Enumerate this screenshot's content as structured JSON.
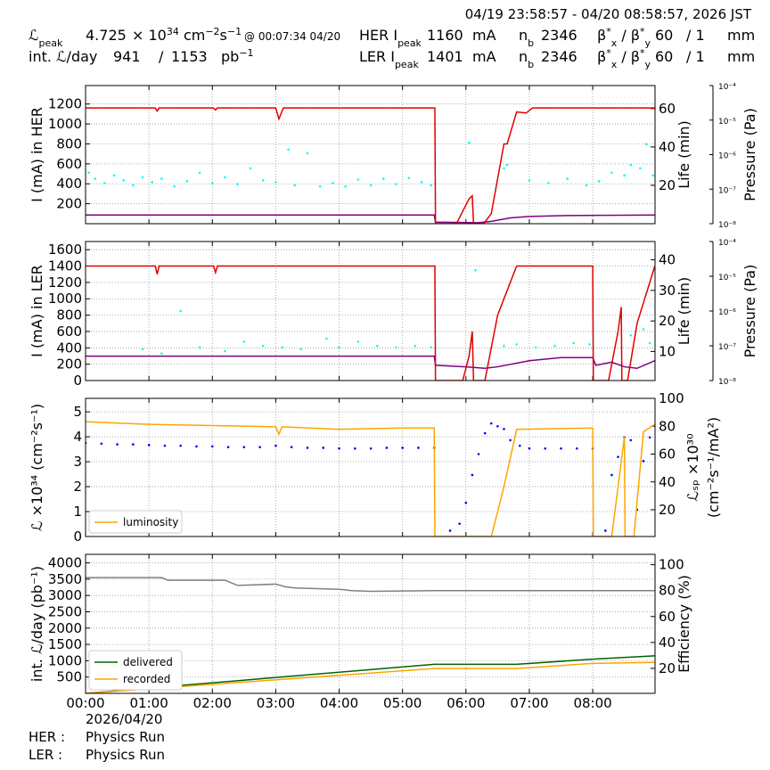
{
  "header": {
    "range": "04/19 23:58:57 - 04/20 08:58:57, 2026 JST",
    "rows": [
      [
        [
          {
            "text": "ℒ"
          },
          {
            "text": "peak",
            "pos": "sub"
          }
        ],
        [
          {
            "text": 4.725
          }
        ],
        [
          {
            "text": "× 10"
          },
          {
            "text": "34",
            "pos": "sup"
          },
          {
            "text": " cm"
          },
          {
            "text": "−2",
            "pos": "sup"
          },
          {
            "text": "s"
          },
          {
            "text": "−1",
            "pos": "sup"
          }
        ],
        [
          {
            "text": "@ 00:07:34 04/20"
          }
        ],
        [
          {
            "text": "HER I"
          },
          {
            "text": "peak",
            "pos": "sub"
          }
        ],
        [
          {
            "text": 1160
          }
        ],
        [
          {
            "text": "mA"
          }
        ],
        [
          {
            "text": "n"
          },
          {
            "text": "b",
            "pos": "sub"
          }
        ],
        [
          {
            "text": 2346
          }
        ],
        [
          {
            "text": "β"
          },
          {
            "text": "*",
            "pos": "sup"
          },
          {
            "text": "x",
            "pos": "sub"
          },
          {
            "text": " / β"
          },
          {
            "text": "*",
            "pos": "sup"
          },
          {
            "text": "y",
            "pos": "sub"
          }
        ],
        [
          {
            "text": 60
          }
        ],
        [
          {
            "text": "/ 1"
          }
        ],
        [
          {
            "text": "mm"
          }
        ]
      ],
      [
        [
          {
            "text": "int. ℒ/day"
          }
        ],
        [
          {
            "text": 941
          }
        ],
        [
          {
            "text": "/"
          }
        ],
        [
          {
            "text": 1153
          }
        ],
        [
          {
            "text": "pb"
          },
          {
            "text": "−1",
            "pos": "sup"
          }
        ],
        [
          {
            "text": "LER I"
          },
          {
            "text": "peak",
            "pos": "sub"
          }
        ],
        [
          {
            "text": 1401
          }
        ],
        [
          {
            "text": "mA"
          }
        ],
        [
          {
            "text": "n"
          },
          {
            "text": "b",
            "pos": "sub"
          }
        ],
        [
          {
            "text": 2346
          }
        ],
        [
          {
            "text": "β"
          },
          {
            "text": "*",
            "pos": "sup"
          },
          {
            "text": "x",
            "pos": "sub"
          },
          {
            "text": " / β"
          },
          {
            "text": "*",
            "pos": "sup"
          },
          {
            "text": "y",
            "pos": "sub"
          }
        ],
        [
          {
            "text": 60
          }
        ],
        [
          {
            "text": "/ 1"
          }
        ],
        [
          {
            "text": "mm"
          }
        ]
      ]
    ]
  },
  "footer": {
    "date": "2026/04/20",
    "rows": [
      {
        "label": "HER :",
        "mode": "Physics Run"
      },
      {
        "label": "LER :",
        "mode": "Physics Run"
      }
    ]
  },
  "chart_data": [
    {
      "type": "line",
      "ylabel": "I (mA) in HER",
      "y2label": "Life (min)",
      "y3label": "Pressure (Pa)",
      "grid": true,
      "xlim": [
        0,
        8.983
      ],
      "xticks": [
        0,
        1,
        2,
        3,
        4,
        5,
        6,
        7,
        8
      ],
      "ylim": [
        0,
        1385
      ],
      "yticks": [
        200,
        400,
        600,
        800,
        1000,
        1200
      ],
      "y2lim": [
        0,
        72
      ],
      "y2ticks": [
        20,
        40,
        60
      ],
      "y3lim": [
        1e-08,
        0.0001
      ],
      "y3log": true,
      "y3ticks": [
        {
          "value": 1e-08,
          "label": "10⁻⁸"
        },
        {
          "value": 1e-07,
          "label": "10⁻⁷"
        },
        {
          "value": 1e-06,
          "label": "10⁻⁶"
        },
        {
          "value": 1e-05,
          "label": "10⁻⁵"
        },
        {
          "value": 0.0001,
          "label": "10⁻⁴"
        }
      ],
      "series": [
        {
          "color": "#00ffff",
          "style": "dots",
          "axis": "y3",
          "x": [
            0.05,
            0.15,
            0.3,
            0.45,
            0.6,
            0.75,
            0.9,
            1.05,
            1.2,
            1.4,
            1.6,
            1.8,
            2.0,
            2.2,
            2.4,
            2.6,
            2.8,
            3.0,
            3.2,
            3.3,
            3.5,
            3.7,
            3.9,
            4.1,
            4.3,
            4.5,
            4.7,
            4.9,
            5.1,
            5.3,
            5.45,
            6.05,
            6.6,
            6.65,
            7.0,
            7.3,
            7.6,
            7.9,
            8.1,
            8.3,
            8.5,
            8.6,
            8.75,
            8.85,
            8.95
          ],
          "values": [
            3e-07,
            2e-07,
            1.5e-07,
            2.5e-07,
            1.8e-07,
            1.3e-07,
            2.2e-07,
            1.6e-07,
            2e-07,
            1.2e-07,
            1.7e-07,
            3e-07,
            1.5e-07,
            2.2e-07,
            1.4e-07,
            4e-07,
            1.8e-07,
            1.6e-07,
            1.4e-06,
            1.3e-07,
            1.1e-06,
            1.2e-07,
            1.5e-07,
            1.2e-07,
            1.9e-07,
            1.3e-07,
            2e-07,
            1.4e-07,
            2.1e-07,
            1.6e-07,
            1.3e-07,
            2.2e-06,
            4e-07,
            5e-07,
            1.8e-07,
            1.5e-07,
            2e-07,
            1.3e-07,
            1.7e-07,
            3e-07,
            2.5e-07,
            5e-07,
            4e-07,
            2e-06,
            2.5e-07
          ]
        },
        {
          "color": "#800080",
          "axis": "y2",
          "x": [
            0,
            5.5,
            5.52,
            6.2,
            6.4,
            6.7,
            7.0,
            7.5,
            8.98
          ],
          "values": [
            4.5,
            4.5,
            0.8,
            0.5,
            1.2,
            3,
            3.8,
            4.2,
            4.5
          ]
        },
        {
          "color": "#e00000",
          "x": [
            0,
            1.1,
            1.13,
            1.16,
            2.02,
            2.05,
            2.08,
            3.0,
            3.05,
            3.12,
            5.51,
            5.52,
            5.85,
            6.05,
            6.1,
            6.12,
            6.28,
            6.4,
            6.5,
            6.6,
            6.65,
            6.8,
            6.95,
            7.05,
            8.98
          ],
          "values": [
            1160,
            1160,
            1130,
            1160,
            1160,
            1140,
            1160,
            1160,
            1050,
            1160,
            1160,
            0,
            0,
            250,
            280,
            0,
            0,
            100,
            450,
            800,
            800,
            1120,
            1110,
            1160,
            1160
          ]
        }
      ]
    },
    {
      "type": "line",
      "ylabel": "I (mA) in LER",
      "y2label": "Life (min)",
      "y3label": "Pressure (Pa)",
      "grid": true,
      "xlim": [
        0,
        8.983
      ],
      "xticks": [
        0,
        1,
        2,
        3,
        4,
        5,
        6,
        7,
        8
      ],
      "ylim": [
        0,
        1700
      ],
      "yticks": [
        0,
        200,
        400,
        600,
        800,
        1000,
        1200,
        1400,
        1600
      ],
      "y2lim": [
        0.5,
        46
      ],
      "y2ticks": [
        10,
        20,
        30,
        40
      ],
      "y3lim": [
        1e-08,
        0.0001
      ],
      "y3log": true,
      "y3ticks": [
        {
          "value": 1e-08,
          "label": "10⁻⁸"
        },
        {
          "value": 1e-07,
          "label": "10⁻⁷"
        },
        {
          "value": 1e-06,
          "label": "10⁻⁶"
        },
        {
          "value": 1e-05,
          "label": "10⁻⁵"
        },
        {
          "value": 0.0001,
          "label": "10⁻⁴"
        }
      ],
      "series": [
        {
          "color": "#00ffff",
          "style": "dots",
          "axis": "y3",
          "x": [
            0.9,
            1.2,
            1.5,
            1.8,
            2.2,
            2.5,
            2.8,
            3.1,
            3.4,
            3.8,
            4.0,
            4.3,
            4.6,
            4.9,
            5.2,
            5.45,
            6.15,
            6.6,
            6.8,
            7.1,
            7.4,
            7.7,
            7.95,
            8.6,
            8.8,
            8.9
          ],
          "values": [
            8e-08,
            6e-08,
            1e-06,
            9e-08,
            7e-08,
            1.3e-07,
            1e-07,
            9e-08,
            8e-08,
            1.6e-07,
            9e-08,
            1.3e-07,
            1e-07,
            9e-08,
            1e-07,
            9e-08,
            1.5e-05,
            1e-07,
            1.1e-07,
            9e-08,
            1e-07,
            1.2e-07,
            1.1e-07,
            2e-07,
            3e-07,
            1.2e-07
          ]
        },
        {
          "color": "#800080",
          "axis": "y2",
          "x": [
            0,
            5.5,
            5.52,
            6.0,
            6.3,
            6.5,
            7.0,
            7.5,
            8.0,
            8.05,
            8.3,
            8.5,
            8.7,
            8.98
          ],
          "values": [
            8.5,
            8.5,
            5.5,
            5,
            4.5,
            5,
            7,
            8,
            8,
            5.5,
            6.5,
            5,
            4.5,
            7
          ]
        },
        {
          "color": "#e00000",
          "x": [
            0,
            1.1,
            1.13,
            1.16,
            2.02,
            2.05,
            2.08,
            5.51,
            5.52,
            5.95,
            6.05,
            6.1,
            6.12,
            6.3,
            6.4,
            6.5,
            6.6,
            6.7,
            6.8,
            8.0,
            8.01,
            8.25,
            8.4,
            8.45,
            8.46,
            8.55,
            8.7,
            8.98
          ],
          "values": [
            1400,
            1400,
            1300,
            1400,
            1400,
            1320,
            1400,
            1400,
            0,
            0,
            300,
            600,
            0,
            0,
            400,
            800,
            1000,
            1200,
            1400,
            1400,
            0,
            0,
            600,
            900,
            0,
            0,
            700,
            1400
          ]
        }
      ]
    },
    {
      "type": "line",
      "ylabel": "ℒ ×10³⁴ (cm⁻²s⁻¹)",
      "y2label": [
        "ℒₛₚ ×10³⁰",
        "(cm⁻²s⁻¹/mA²)"
      ],
      "grid": true,
      "legend": "lower left",
      "xlim": [
        0,
        8.983
      ],
      "xticks": [
        0,
        1,
        2,
        3,
        4,
        5,
        6,
        7,
        8
      ],
      "ylim": [
        0,
        5.54
      ],
      "yticks": [
        0,
        1,
        2,
        3,
        4,
        5
      ],
      "y2lim": [
        0.8,
        100
      ],
      "y2ticks": [
        20,
        40,
        60,
        80,
        100
      ],
      "series": [
        {
          "color": "#0000ff",
          "style": "dots",
          "axis": "y2",
          "x": [
            0,
            0.25,
            0.5,
            0.75,
            1,
            1.25,
            1.5,
            1.75,
            2,
            2.25,
            2.5,
            2.75,
            3,
            3.25,
            3.5,
            3.75,
            4,
            4.25,
            4.5,
            4.75,
            5,
            5.25,
            5.5,
            5.75,
            5.9,
            6.0,
            6.1,
            6.2,
            6.3,
            6.4,
            6.5,
            6.6,
            6.7,
            6.85,
            7.0,
            7.25,
            7.5,
            7.75,
            8.0,
            8.2,
            8.3,
            8.4,
            8.5,
            8.6,
            8.7,
            8.8,
            8.9
          ],
          "values": [
            68,
            67.5,
            67,
            67,
            66.5,
            66,
            66,
            65.5,
            65.5,
            65,
            65,
            65,
            66,
            65,
            64.5,
            64.5,
            64,
            64,
            64,
            64.5,
            64.5,
            64.5,
            64.5,
            5,
            10,
            25,
            45,
            60,
            75,
            82,
            80,
            78,
            70,
            66,
            64,
            64,
            64,
            64,
            64,
            5,
            45,
            58,
            72,
            70,
            20,
            55,
            72
          ]
        },
        {
          "name": "luminosity",
          "color": "#ffa500",
          "x": [
            0,
            0.5,
            1,
            2,
            3,
            3.05,
            3.1,
            4,
            5,
            5.5,
            5.51,
            6.4,
            6.6,
            6.8,
            8.0,
            8.01,
            8.3,
            8.5,
            8.51,
            8.65,
            8.8,
            8.98
          ],
          "values": [
            4.6,
            4.55,
            4.5,
            4.45,
            4.4,
            4.1,
            4.4,
            4.3,
            4.35,
            4.35,
            0,
            0,
            2,
            4.3,
            4.35,
            0,
            0,
            4,
            0,
            0,
            4.2,
            4.5
          ]
        }
      ]
    },
    {
      "type": "line",
      "ylabel": "int. ℒ/day (pb⁻¹)",
      "y2label": "Efficiency (%)",
      "grid": true,
      "legend": "lower left",
      "xlim": [
        0,
        8.983
      ],
      "xticks": [
        {
          "value": 0,
          "label": "00:00"
        },
        {
          "value": 1,
          "label": "01:00"
        },
        {
          "value": 2,
          "label": "02:00"
        },
        {
          "value": 3,
          "label": "03:00"
        },
        {
          "value": 4,
          "label": "04:00"
        },
        {
          "value": 5,
          "label": "05:00"
        },
        {
          "value": 6,
          "label": "06:00"
        },
        {
          "value": 7,
          "label": "07:00"
        },
        {
          "value": 8,
          "label": "08:00"
        }
      ],
      "ylim": [
        0,
        4262
      ],
      "yticks": [
        500,
        1000,
        1500,
        2000,
        2500,
        3000,
        3500,
        4000
      ],
      "y2lim": [
        0.7,
        108
      ],
      "y2ticks": [
        20,
        40,
        60,
        80,
        100
      ],
      "series": [
        {
          "color": "#808080",
          "axis": "y2",
          "x": [
            0,
            1.2,
            1.3,
            2.2,
            2.4,
            3.0,
            3.15,
            3.3,
            4.0,
            4.2,
            4.5,
            5.5,
            8.98
          ],
          "values": [
            90,
            90,
            88,
            88,
            84,
            85,
            83,
            82,
            81,
            80,
            79.5,
            80,
            80
          ]
        },
        {
          "name": "delivered",
          "color": "#006400",
          "x": [
            0,
            5.5,
            6.8,
            8.0,
            8.98
          ],
          "values": [
            0,
            890,
            890,
            1050,
            1150
          ]
        },
        {
          "name": "recorded",
          "color": "#ffa500",
          "x": [
            0,
            5.5,
            6.8,
            8.0,
            8.98
          ],
          "values": [
            0,
            760,
            760,
            920,
            950
          ]
        }
      ]
    }
  ]
}
